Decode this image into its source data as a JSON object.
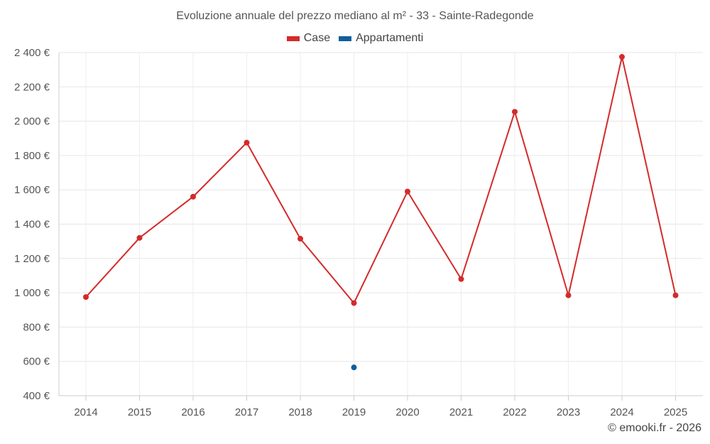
{
  "chart_data": {
    "type": "line",
    "title": "Evoluzione annuale del prezzo mediano al m² - 33 - Sainte-Radegonde",
    "xlabel": "",
    "ylabel": "",
    "categories": [
      "2014",
      "2015",
      "2016",
      "2017",
      "2018",
      "2019",
      "2020",
      "2021",
      "2022",
      "2023",
      "2024",
      "2025"
    ],
    "ylim": [
      400,
      2400
    ],
    "yticks": [
      400,
      600,
      800,
      1000,
      1200,
      1400,
      1600,
      1800,
      2000,
      2200,
      2400
    ],
    "ytick_labels": [
      "400 €",
      "600 €",
      "800 €",
      "1 000 €",
      "1 200 €",
      "1 400 €",
      "1 600 €",
      "1 800 €",
      "2 000 €",
      "2 200 €",
      "2 400 €"
    ],
    "grid": true,
    "legend_position": "top-center",
    "series": [
      {
        "name": "Case",
        "color": "#d42a2a",
        "values": [
          975,
          1320,
          1560,
          1875,
          1315,
          940,
          1590,
          1080,
          2055,
          985,
          2375,
          985
        ]
      },
      {
        "name": "Appartamenti",
        "color": "#0f5f9e",
        "values": [
          null,
          null,
          null,
          null,
          null,
          565,
          null,
          null,
          null,
          null,
          null,
          null
        ]
      }
    ]
  },
  "footer": {
    "credit": "© emooki.fr - 2026"
  }
}
